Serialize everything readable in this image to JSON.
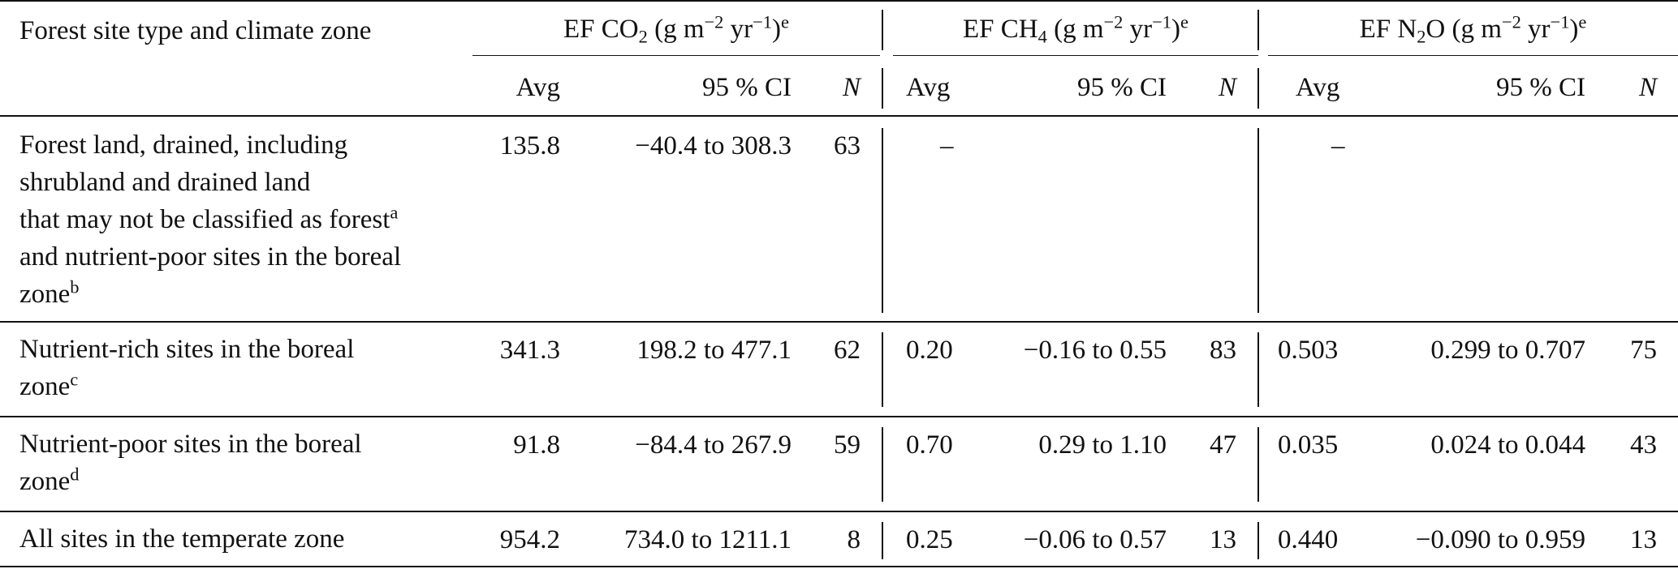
{
  "header": {
    "stub": "Forest site type and climate zone",
    "groups": [
      {
        "name": "co2",
        "pre": "EF CO",
        "sub": "2",
        "post": " (g m",
        "exp1": "−2",
        "mid": " yr",
        "exp2": "−1",
        "close": ")",
        "mark": "e"
      },
      {
        "name": "ch4",
        "pre": "EF CH",
        "sub": "4",
        "post": " (g m",
        "exp1": "−2",
        "mid": " yr",
        "exp2": "−1",
        "close": ")",
        "mark": "e"
      },
      {
        "name": "n2o",
        "pre": "EF N",
        "sub": "2",
        "post": "O (g m",
        "exp1": "−2",
        "mid": " yr",
        "exp2": "−1",
        "close": ")",
        "mark": "e"
      }
    ],
    "sub_avg": "Avg",
    "sub_ci": "95 % CI",
    "sub_n": "N"
  },
  "rows": [
    {
      "label_lines": [
        "Forest land, drained, including",
        "shrubland and drained land",
        "that may not be classified as forest",
        "and nutrient-poor sites in the boreal",
        "zone"
      ],
      "line_marks": [
        "",
        "",
        "a",
        "",
        "b"
      ],
      "co2": {
        "avg": "135.8",
        "ci": "−40.4 to 308.3",
        "n": "63"
      },
      "ch4": {
        "avg": "–",
        "ci": "",
        "n": ""
      },
      "n2o": {
        "avg": "–",
        "ci": "",
        "n": ""
      }
    },
    {
      "label_lines": [
        "Nutrient-rich sites in the boreal",
        "zone"
      ],
      "line_marks": [
        "",
        "c"
      ],
      "co2": {
        "avg": "341.3",
        "ci": "198.2 to 477.1",
        "n": "62"
      },
      "ch4": {
        "avg": "0.20",
        "ci": "−0.16 to 0.55",
        "n": "83"
      },
      "n2o": {
        "avg": "0.503",
        "ci": "0.299 to 0.707",
        "n": "75"
      }
    },
    {
      "label_lines": [
        "Nutrient-poor sites in the boreal",
        "zone"
      ],
      "line_marks": [
        "",
        "d"
      ],
      "co2": {
        "avg": "91.8",
        "ci": "−84.4 to 267.9",
        "n": "59"
      },
      "ch4": {
        "avg": "0.70",
        "ci": "0.29 to 1.10",
        "n": "47"
      },
      "n2o": {
        "avg": "0.035",
        "ci": "0.024 to 0.044",
        "n": "43"
      }
    },
    {
      "label_lines": [
        "All sites in the temperate zone"
      ],
      "line_marks": [
        ""
      ],
      "co2": {
        "avg": "954.2",
        "ci": "734.0 to 1211.1",
        "n": "8"
      },
      "ch4": {
        "avg": "0.25",
        "ci": "−0.06 to 0.57",
        "n": "13"
      },
      "n2o": {
        "avg": "0.440",
        "ci": "−0.090 to 0.959",
        "n": "13"
      }
    }
  ]
}
